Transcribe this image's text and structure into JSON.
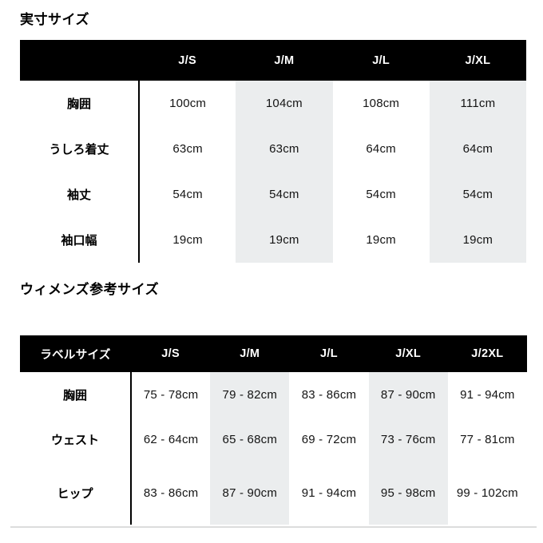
{
  "colors": {
    "header_background": "#000000",
    "header_text": "#ffffff",
    "shaded_column": "#ebedee",
    "body_text": "#141414",
    "bottom_rule": "#dcdddd"
  },
  "tables": [
    {
      "title": "実寸サイズ",
      "columns": [
        "",
        "J/S",
        "J/M",
        "J/L",
        "J/XL"
      ],
      "shaded_columns": [
        "J/M",
        "J/XL"
      ],
      "rows": [
        {
          "label": "胸囲",
          "values": [
            "100cm",
            "104cm",
            "108cm",
            "111cm"
          ]
        },
        {
          "label": "うしろ着丈",
          "values": [
            "63cm",
            "63cm",
            "64cm",
            "64cm"
          ]
        },
        {
          "label": "袖丈",
          "values": [
            "54cm",
            "54cm",
            "54cm",
            "54cm"
          ]
        },
        {
          "label": "袖口幅",
          "values": [
            "19cm",
            "19cm",
            "19cm",
            "19cm"
          ]
        }
      ]
    },
    {
      "title": "ウィメンズ参考サイズ",
      "columns": [
        "ラベルサイズ",
        "J/S",
        "J/M",
        "J/L",
        "J/XL",
        "J/2XL"
      ],
      "shaded_columns": [
        "J/M",
        "J/XL"
      ],
      "rows": [
        {
          "label": "胸囲",
          "values": [
            "75 - 78cm",
            "79 - 82cm",
            "83 - 86cm",
            "87 - 90cm",
            "91 - 94cm"
          ]
        },
        {
          "label": "ウェスト",
          "values": [
            "62 - 64cm",
            "65 - 68cm",
            "69 - 72cm",
            "73 - 76cm",
            "77 - 81cm"
          ]
        },
        {
          "label": "ヒップ",
          "values": [
            "83 - 86cm",
            "87 - 90cm",
            "91 - 94cm",
            "95 - 98cm",
            "99 - 102cm"
          ]
        }
      ]
    }
  ]
}
